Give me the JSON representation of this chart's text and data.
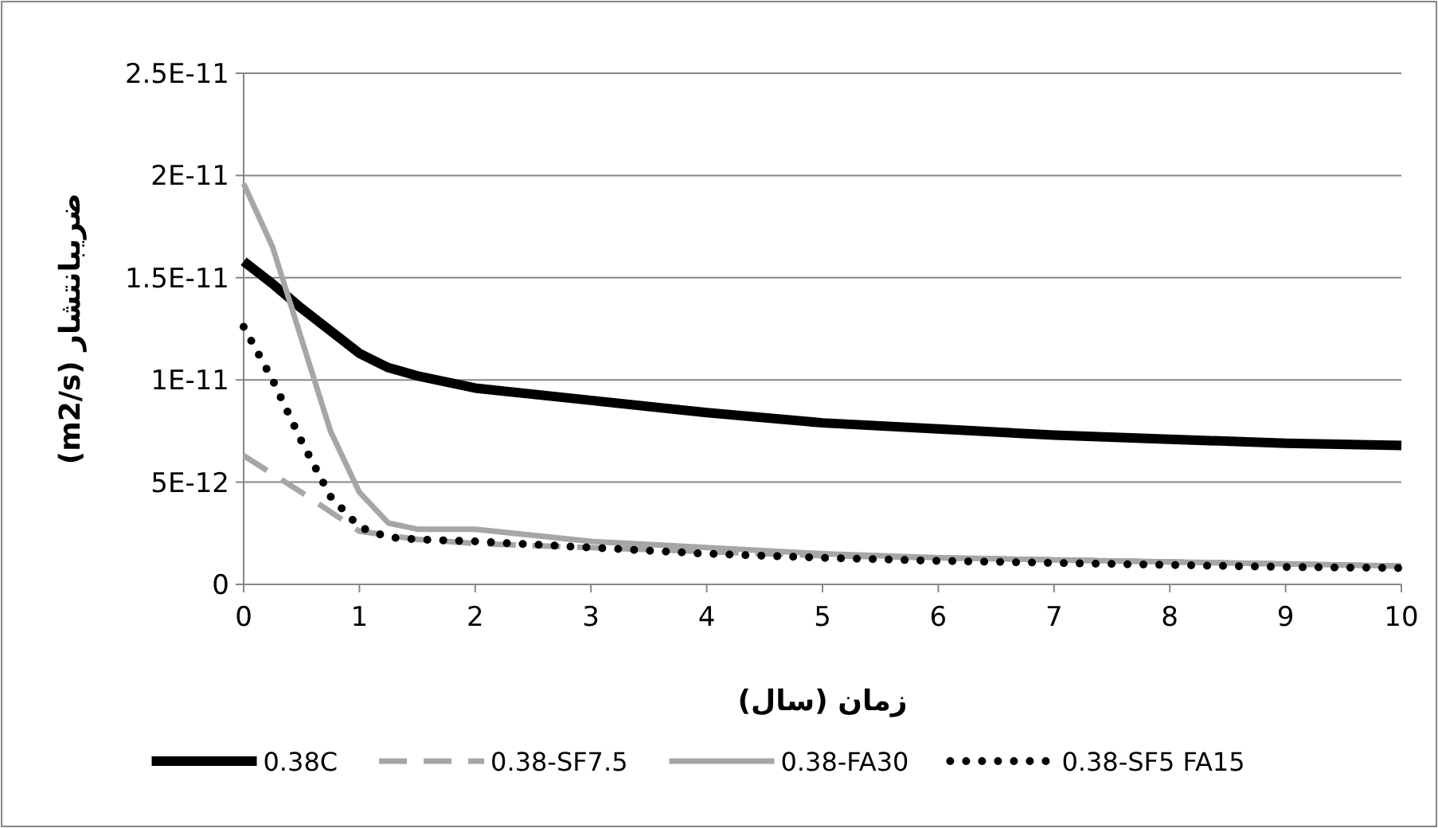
{
  "chart_data": {
    "type": "line",
    "xlabel": "زمان (سال)",
    "ylabel": "ضریبانتشار (m2/s)",
    "xlim": [
      0,
      10
    ],
    "xticks": [
      0,
      1,
      2,
      3,
      4,
      5,
      6,
      7,
      8,
      9,
      10
    ],
    "ylim": [
      0,
      2.5e-11
    ],
    "yticks": [
      {
        "value": 0,
        "label": "0"
      },
      {
        "value": 5e-12,
        "label": "5E-12"
      },
      {
        "value": 1e-11,
        "label": "1E-11"
      },
      {
        "value": 1.5e-11,
        "label": "1.5E-11"
      },
      {
        "value": 2e-11,
        "label": "2E-11"
      },
      {
        "value": 2.5e-11,
        "label": "2.5E-11"
      }
    ],
    "grid": "y",
    "legend": "bottom",
    "marker": "none",
    "series": [
      {
        "name": "0.38C",
        "color": "#000000",
        "line_style": "solid",
        "x": [
          0,
          0.25,
          0.5,
          0.75,
          1,
          1.25,
          1.5,
          2,
          3,
          4,
          5,
          6,
          7,
          8,
          9,
          10
        ],
        "values": [
          1.58e-11,
          1.47e-11,
          1.35e-11,
          1.24e-11,
          1.13e-11,
          1.06e-11,
          1.02e-11,
          9.6e-12,
          9e-12,
          8.4e-12,
          7.9e-12,
          7.6e-12,
          7.3e-12,
          7.1e-12,
          6.9e-12,
          6.8e-12
        ]
      },
      {
        "name": "0.38-SF7.5",
        "color": "#a6a6a6",
        "line_style": "dashed",
        "x": [
          0,
          0.5,
          1,
          1.5,
          2,
          3,
          4,
          5,
          6,
          7,
          8,
          9,
          10
        ],
        "values": [
          6.3e-12,
          4.5e-12,
          2.6e-12,
          2.2e-12,
          2e-12,
          1.8e-12,
          1.6e-12,
          1.4e-12,
          1.3e-12,
          1.2e-12,
          1.1e-12,
          1e-12,
          9e-13
        ]
      },
      {
        "name": "0.38-FA30",
        "color": "#a6a6a6",
        "line_style": "solid",
        "x": [
          0,
          0.25,
          0.5,
          0.75,
          1,
          1.25,
          1.5,
          2,
          3,
          4,
          5,
          6,
          7,
          8,
          9,
          10
        ],
        "values": [
          1.96e-11,
          1.65e-11,
          1.2e-11,
          7.5e-12,
          4.5e-12,
          3e-12,
          2.7e-12,
          2.7e-12,
          2.1e-12,
          1.8e-12,
          1.5e-12,
          1.3e-12,
          1.2e-12,
          1.1e-12,
          1e-12,
          9e-13
        ]
      },
      {
        "name": "0.38-SF5 FA15",
        "color": "#000000",
        "line_style": "dotted",
        "x": [
          0,
          0.25,
          0.5,
          0.75,
          1,
          1.25,
          1.5,
          2,
          3,
          4,
          5,
          6,
          7,
          8,
          9,
          10
        ],
        "values": [
          1.26e-11,
          1e-11,
          7e-12,
          4.3e-12,
          2.8e-12,
          2.3e-12,
          2.2e-12,
          2.1e-12,
          1.8e-12,
          1.5e-12,
          1.3e-12,
          1.15e-12,
          1.05e-12,
          9.5e-13,
          8.5e-13,
          8e-13
        ]
      }
    ]
  }
}
